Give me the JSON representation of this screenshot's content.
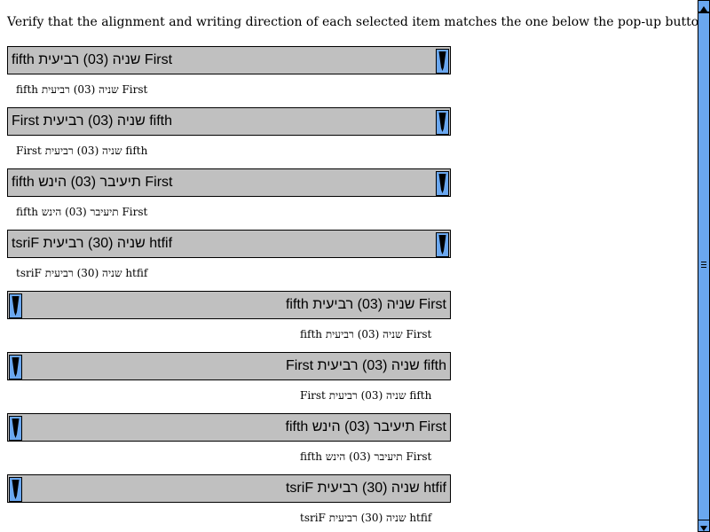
{
  "instruction": "Verify that the alignment and writing direction of each selected item matches the one below the pop-up button.",
  "rows": [
    {
      "direction": "ltr",
      "selected": "fifth שניה (03) רביעית First",
      "caption": "fifth שניה (03) רביעית First"
    },
    {
      "direction": "ltr",
      "selected": "First שניה (03) רביעית fifth",
      "caption": "First שניה (03) רביעית fifth"
    },
    {
      "direction": "ltr",
      "selected": "fifth תיעיבר (03) הינש First",
      "caption": "fifth תיעיבר (03) הינש First"
    },
    {
      "direction": "ltr",
      "selected": "tsriF שניה (30) רביעית htfif",
      "caption": "tsriF שניה (30) רביעית htfif"
    },
    {
      "direction": "rtl",
      "selected": "fifth שניה (03) רביעית First",
      "caption": "fifth שניה (03) רביעית First"
    },
    {
      "direction": "rtl",
      "selected": "First שניה (03) רביעית fifth",
      "caption": "First שניה (03) רביעית fifth"
    },
    {
      "direction": "rtl",
      "selected": "fifth תיעיבר (03) הינש First",
      "caption": "fifth תיעיבר (03) הינש First"
    },
    {
      "direction": "rtl",
      "selected": "tsriF שניה (30) רביעית htfif",
      "caption": "tsriF שניה (30) רביעית htfif"
    }
  ],
  "colors": {
    "popup_background": "#c0c0c0",
    "dropdown_button": "#6aa7ef",
    "scrollbar_track": "#e6e6e6"
  },
  "icons": {
    "dropdown": "dropdown-arrow-icon",
    "scroll_up": "scroll-up-arrow-icon",
    "scroll_down": "scroll-down-arrow-icon"
  }
}
